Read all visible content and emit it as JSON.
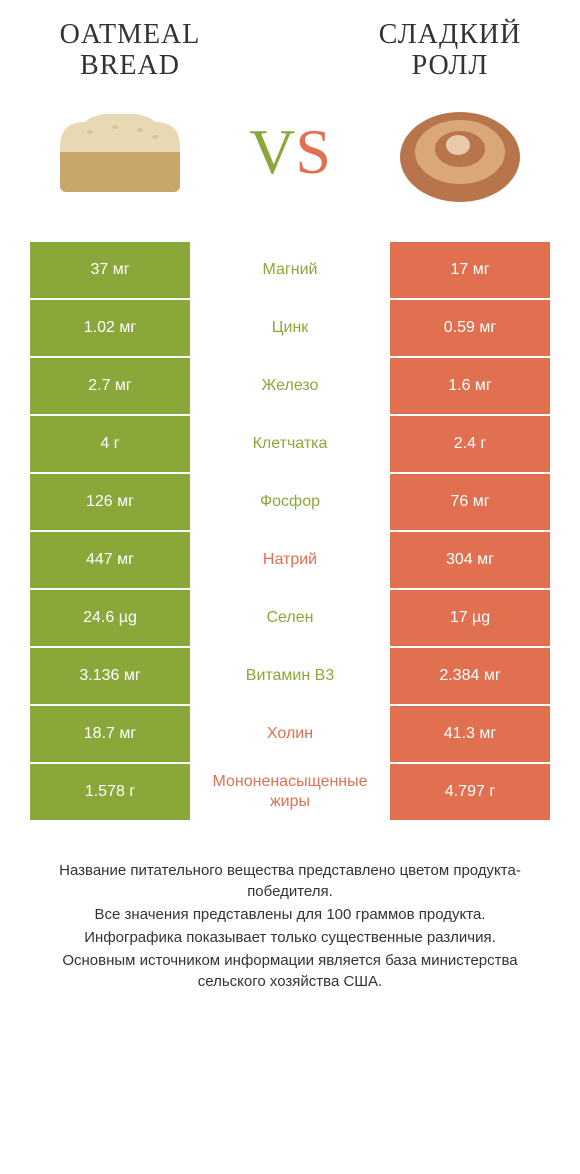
{
  "header": {
    "title_left": "OATMEAL BREAD",
    "title_right": "СЛАДКИЙ РОЛЛ",
    "vs_v": "V",
    "vs_s": "S"
  },
  "colors": {
    "left": "#8aa83a",
    "right": "#e07050",
    "text": "#333333",
    "background": "#ffffff"
  },
  "table": {
    "type": "comparison-table",
    "rows": [
      {
        "left": "37 мг",
        "label": "Магний",
        "right": "17 мг",
        "winner": "left"
      },
      {
        "left": "1.02 мг",
        "label": "Цинк",
        "right": "0.59 мг",
        "winner": "left"
      },
      {
        "left": "2.7 мг",
        "label": "Железо",
        "right": "1.6 мг",
        "winner": "left"
      },
      {
        "left": "4 г",
        "label": "Клетчатка",
        "right": "2.4 г",
        "winner": "left"
      },
      {
        "left": "126 мг",
        "label": "Фосфор",
        "right": "76 мг",
        "winner": "left"
      },
      {
        "left": "447 мг",
        "label": "Натрий",
        "right": "304 мг",
        "winner": "right"
      },
      {
        "left": "24.6 µg",
        "label": "Селен",
        "right": "17 µg",
        "winner": "left"
      },
      {
        "left": "3.136 мг",
        "label": "Витамин B3",
        "right": "2.384 мг",
        "winner": "left"
      },
      {
        "left": "18.7 мг",
        "label": "Холин",
        "right": "41.3 мг",
        "winner": "right"
      },
      {
        "left": "1.578 г",
        "label": "Мононенасыщенные жиры",
        "right": "4.797 г",
        "winner": "right"
      }
    ]
  },
  "footer": {
    "line1": "Название питательного вещества представлено цветом продукта-победителя.",
    "line2": "Все значения представлены для 100 граммов продукта.",
    "line3": "Инфографика показывает только существенные различия.",
    "line4": "Основным источником информации является база министерства сельского хозяйства США."
  },
  "typography": {
    "title_fontsize": 28,
    "vs_fontsize": 64,
    "cell_fontsize": 16,
    "footer_fontsize": 15
  }
}
